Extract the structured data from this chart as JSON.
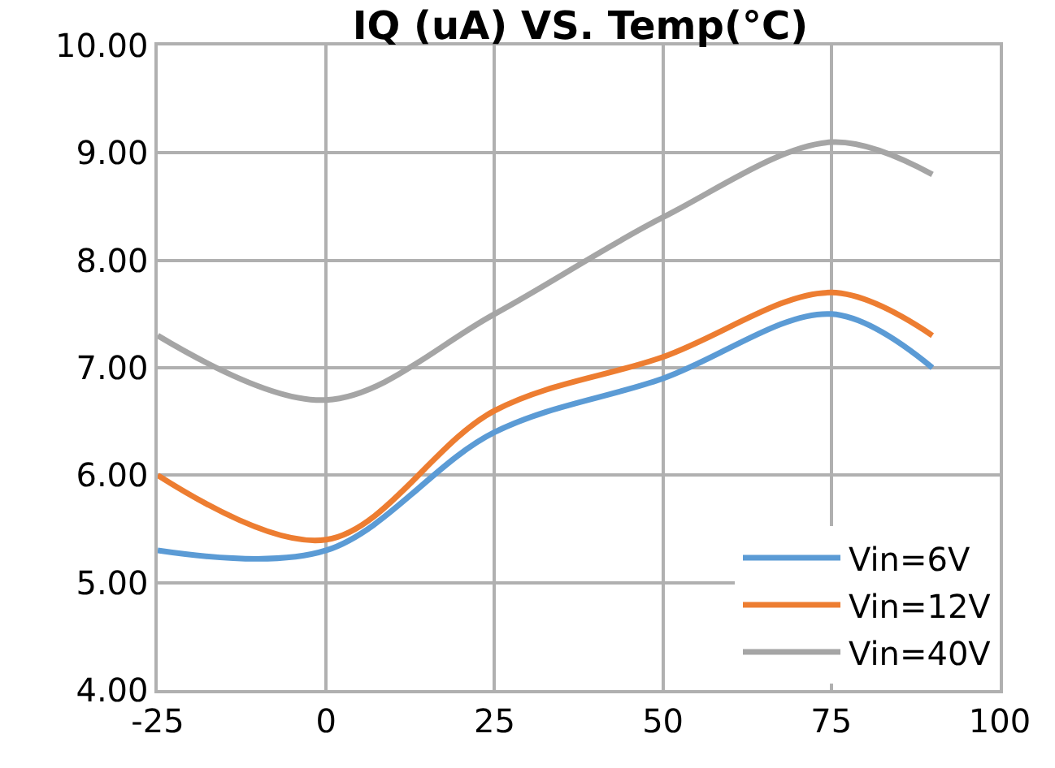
{
  "chart_data": {
    "type": "line",
    "title": "IQ (uA) VS. Temp(°C)",
    "x": [
      -25,
      0,
      25,
      50,
      75,
      90
    ],
    "series": [
      {
        "name": "Vin=6V",
        "color": "#5b9bd5",
        "values": [
          5.3,
          5.3,
          6.4,
          6.9,
          7.5,
          7.0
        ]
      },
      {
        "name": "Vin=12V",
        "color": "#ed7d31",
        "values": [
          6.0,
          5.4,
          6.6,
          7.1,
          7.7,
          7.3
        ]
      },
      {
        "name": "Vin=40V",
        "color": "#a5a5a5",
        "values": [
          7.3,
          6.7,
          7.5,
          8.4,
          9.1,
          8.8
        ]
      }
    ],
    "xlim": [
      -25,
      100
    ],
    "xticks": [
      -25,
      0,
      25,
      50,
      75,
      100
    ],
    "ylim": [
      4,
      10
    ],
    "yticks": [
      {
        "value": 4,
        "label": "4.00"
      },
      {
        "value": 5,
        "label": "5.00"
      },
      {
        "value": 6,
        "label": "6.00"
      },
      {
        "value": 7,
        "label": "7.00"
      },
      {
        "value": 8,
        "label": "8.00"
      },
      {
        "value": 9,
        "label": "9.00"
      },
      {
        "value": 10,
        "label": "10.00"
      }
    ],
    "grid": true,
    "legend": "bottom right",
    "marker": "none",
    "line_style": "solid"
  }
}
